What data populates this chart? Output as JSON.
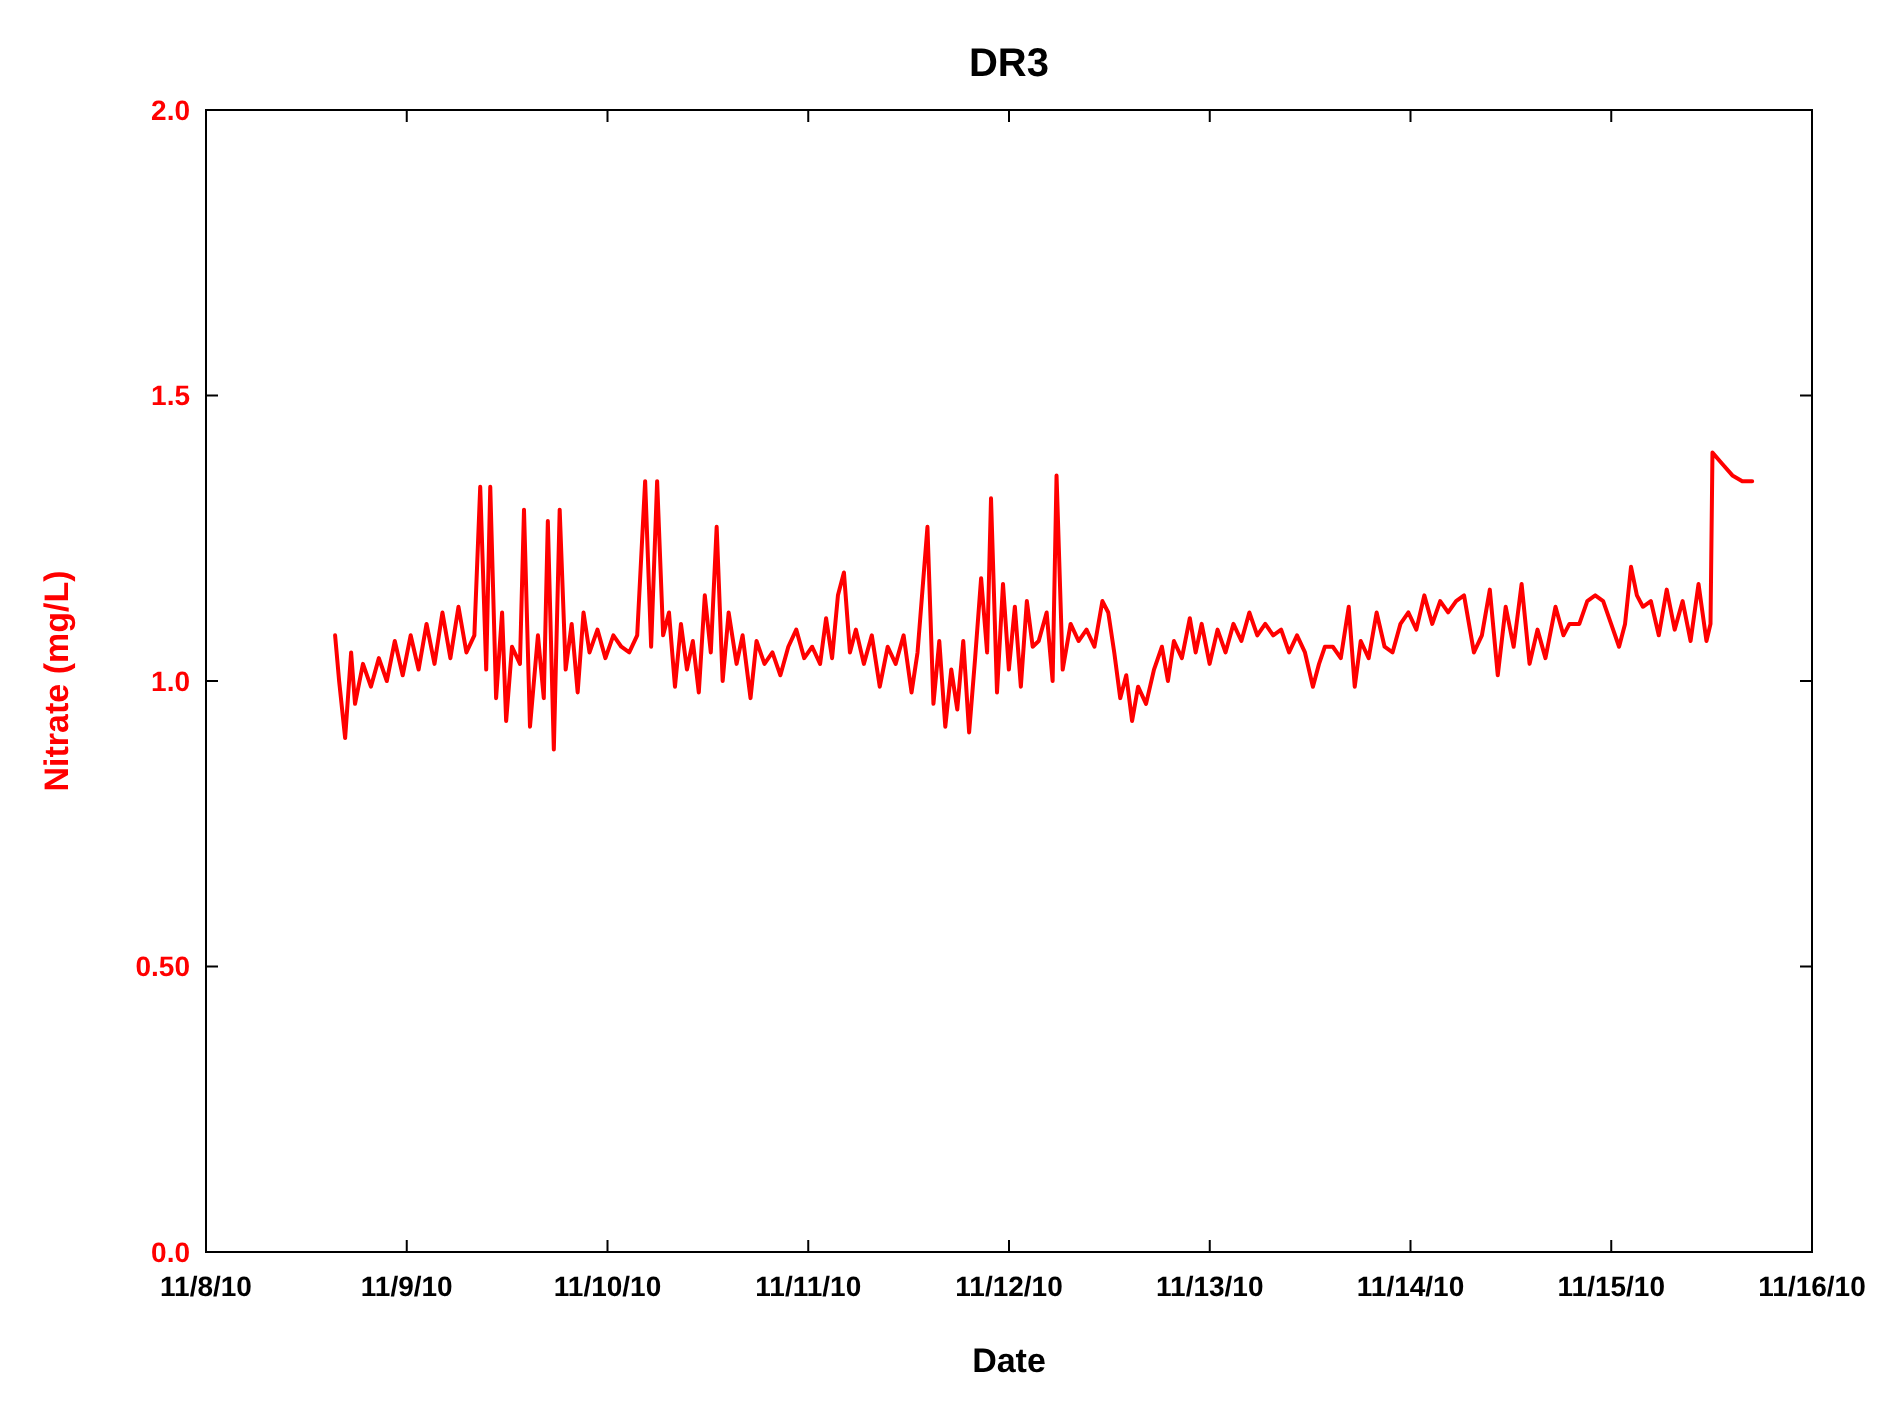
{
  "chart_data": {
    "type": "line",
    "title": "DR3",
    "xlabel": "Date",
    "ylabel": "Nitrate (mg/L)",
    "xlim": [
      "--11-08",
      "--11-16"
    ],
    "xticks": [
      {
        "value": "--11-08",
        "label": "11/8/10"
      },
      {
        "value": "--11-09",
        "label": "11/9/10"
      },
      {
        "value": "--11-10",
        "label": "11/10/10"
      },
      {
        "value": "--11-11",
        "label": "11/11/10"
      },
      {
        "value": "--11-12",
        "label": "11/12/10"
      },
      {
        "value": "--11-13",
        "label": "11/13/10"
      },
      {
        "value": "--11-14",
        "label": "11/14/10"
      },
      {
        "value": "--11-15",
        "label": "11/15/10"
      },
      {
        "value": "--11-16",
        "label": "11/16/10"
      }
    ],
    "ylim": [
      0,
      2
    ],
    "yticks": [
      {
        "value": 0,
        "label": "0.0"
      },
      {
        "value": 0.5,
        "label": "0.50"
      },
      {
        "value": 1,
        "label": "1.0"
      },
      {
        "value": 1.5,
        "label": "1.5"
      },
      {
        "value": 2,
        "label": "2.0"
      }
    ],
    "grid": false,
    "marker": "none",
    "line_style": "solid",
    "x": [
      "--11-08T15:26",
      "--11-08T15:55",
      "--11-08T16:38",
      "--11-08T17:21",
      "--11-08T17:49",
      "--11-08T18:46",
      "--11-08T19:43",
      "--11-08T20:40",
      "--11-08T21:37",
      "--11-08T22:34",
      "--11-08T23:31",
      "--11-09T00:28",
      "--11-09T01:25",
      "--11-09T02:22",
      "--11-09T03:19",
      "--11-09T04:16",
      "--11-09T05:13",
      "--11-09T06:11",
      "--11-09T07:08",
      "--11-09T08:05",
      "--11-09T08:47",
      "--11-09T09:30",
      "--11-09T09:59",
      "--11-09T10:41",
      "--11-09T11:24",
      "--11-09T11:53",
      "--11-09T12:35",
      "--11-09T13:32",
      "--11-09T14:01",
      "--11-09T14:44",
      "--11-09T15:41",
      "--11-09T16:23",
      "--11-09T16:52",
      "--11-09T17:35",
      "--11-09T18:17",
      "--11-09T19:00",
      "--11-09T19:43",
      "--11-09T20:26",
      "--11-09T21:08",
      "--11-09T21:51",
      "--11-09T22:48",
      "--11-09T23:45",
      "--11-10T00:42",
      "--11-10T01:39",
      "--11-10T02:36",
      "--11-10T03:33",
      "--11-10T04:30",
      "--11-10T05:13",
      "--11-10T05:56",
      "--11-10T06:39",
      "--11-10T07:21",
      "--11-10T08:04",
      "--11-10T08:47",
      "--11-10T09:30",
      "--11-10T10:12",
      "--11-10T10:55",
      "--11-10T11:38",
      "--11-10T12:21",
      "--11-10T13:03",
      "--11-10T13:46",
      "--11-10T14:29",
      "--11-10T15:26",
      "--11-10T16:09",
      "--11-10T17:06",
      "--11-10T17:49",
      "--11-10T18:46",
      "--11-10T19:43",
      "--11-10T20:40",
      "--11-10T21:37",
      "--11-10T22:34",
      "--11-10T23:31",
      "--11-11T00:28",
      "--11-11T01:25",
      "--11-11T02:08",
      "--11-11T02:51",
      "--11-11T03:33",
      "--11-11T04:16",
      "--11-11T04:59",
      "--11-11T05:42",
      "--11-11T06:39",
      "--11-11T07:36",
      "--11-11T08:33",
      "--11-11T09:30",
      "--11-11T10:27",
      "--11-11T11:24",
      "--11-11T12:21",
      "--11-11T13:04",
      "--11-11T14:15",
      "--11-11T14:58",
      "--11-11T15:40",
      "--11-11T16:23",
      "--11-11T17:06",
      "--11-11T17:49",
      "--11-11T18:32",
      "--11-11T19:14",
      "--11-11T19:57",
      "--11-11T20:40",
      "--11-11T21:23",
      "--11-11T21:51",
      "--11-11T22:34",
      "--11-11T23:17",
      "--11-11T23:59",
      "--11-12T00:42",
      "--11-12T01:25",
      "--11-12T02:08",
      "--11-12T02:50",
      "--11-12T03:33",
      "--11-12T04:30",
      "--11-12T05:13",
      "--11-12T05:41",
      "--11-12T06:25",
      "--11-12T07:22",
      "--11-12T08:19",
      "--11-12T09:16",
      "--11-12T10:13",
      "--11-12T11:10",
      "--11-12T11:52",
      "--11-12T12:35",
      "--11-12T13:18",
      "--11-12T14:01",
      "--11-12T14:43",
      "--11-12T15:26",
      "--11-12T16:23",
      "--11-12T17:20",
      "--11-12T18:17",
      "--11-12T19:00",
      "--11-12T19:43",
      "--11-12T20:40",
      "--11-12T21:37",
      "--11-12T22:19",
      "--11-12T23:02",
      "--11-12T23:59",
      "--11-13T00:56",
      "--11-13T01:53",
      "--11-13T02:50",
      "--11-13T03:47",
      "--11-13T04:44",
      "--11-13T05:41",
      "--11-13T06:38",
      "--11-13T07:35",
      "--11-13T08:32",
      "--11-13T09:29",
      "--11-13T10:26",
      "--11-13T11:23",
      "--11-13T12:20",
      "--11-13T13:04",
      "--11-13T13:46",
      "--11-13T14:43",
      "--11-13T15:40",
      "--11-13T16:37",
      "--11-13T17:20",
      "--11-13T18:03",
      "--11-13T19:00",
      "--11-13T19:57",
      "--11-13T20:54",
      "--11-13T21:51",
      "--11-13T22:48",
      "--11-13T23:45",
      "--11-14T00:42",
      "--11-14T01:39",
      "--11-14T02:36",
      "--11-14T03:33",
      "--11-14T04:30",
      "--11-14T05:27",
      "--11-14T06:24",
      "--11-14T07:35",
      "--11-14T08:32",
      "--11-14T09:29",
      "--11-14T10:26",
      "--11-14T11:23",
      "--11-14T12:20",
      "--11-14T13:17",
      "--11-14T14:14",
      "--11-14T15:11",
      "--11-14T16:08",
      "--11-14T17:20",
      "--11-14T18:17",
      "--11-14T19:00",
      "--11-14T20:11",
      "--11-14T21:08",
      "--11-14T22:05",
      "--11-14T23:02",
      "--11-14T23:59",
      "--11-15T00:56",
      "--11-15T01:39",
      "--11-15T02:22",
      "--11-15T03:04",
      "--11-15T03:47",
      "--11-15T04:44",
      "--11-15T05:41",
      "--11-15T06:38",
      "--11-15T07:35",
      "--11-15T08:32",
      "--11-15T09:29",
      "--11-15T10:26",
      "--11-15T11:23",
      "--11-15T11:52",
      "--11-15T12:06",
      "--11-15T13:17",
      "--11-15T14:29",
      "--11-15T15:40",
      "--11-15T16:51"
    ],
    "series": [
      {
        "color": "#ff0000",
        "values": [
          1.08,
          1.0,
          0.9,
          1.05,
          0.96,
          1.03,
          0.99,
          1.04,
          1.0,
          1.07,
          1.01,
          1.08,
          1.02,
          1.1,
          1.03,
          1.12,
          1.04,
          1.13,
          1.05,
          1.08,
          1.34,
          1.02,
          1.34,
          0.97,
          1.12,
          0.93,
          1.06,
          1.03,
          1.3,
          0.92,
          1.08,
          0.97,
          1.28,
          0.88,
          1.3,
          1.02,
          1.1,
          0.98,
          1.12,
          1.05,
          1.09,
          1.04,
          1.08,
          1.06,
          1.05,
          1.08,
          1.35,
          1.06,
          1.35,
          1.08,
          1.12,
          0.99,
          1.1,
          1.02,
          1.07,
          0.98,
          1.15,
          1.05,
          1.27,
          1.0,
          1.12,
          1.03,
          1.08,
          0.97,
          1.07,
          1.03,
          1.05,
          1.01,
          1.06,
          1.09,
          1.04,
          1.06,
          1.03,
          1.11,
          1.04,
          1.15,
          1.19,
          1.05,
          1.09,
          1.03,
          1.08,
          0.99,
          1.06,
          1.03,
          1.08,
          0.98,
          1.05,
          1.27,
          0.96,
          1.07,
          0.92,
          1.02,
          0.95,
          1.07,
          0.91,
          1.04,
          1.18,
          1.05,
          1.32,
          0.98,
          1.17,
          1.02,
          1.13,
          0.99,
          1.14,
          1.06,
          1.07,
          1.12,
          1.0,
          1.36,
          1.02,
          1.1,
          1.07,
          1.09,
          1.06,
          1.14,
          1.12,
          1.05,
          0.97,
          1.01,
          0.93,
          0.99,
          0.96,
          1.02,
          1.06,
          1.0,
          1.07,
          1.04,
          1.11,
          1.05,
          1.1,
          1.03,
          1.09,
          1.05,
          1.1,
          1.07,
          1.12,
          1.08,
          1.1,
          1.08,
          1.09,
          1.05,
          1.08,
          1.05,
          0.99,
          1.03,
          1.06,
          1.06,
          1.04,
          1.13,
          0.99,
          1.07,
          1.04,
          1.12,
          1.06,
          1.05,
          1.1,
          1.12,
          1.09,
          1.15,
          1.1,
          1.14,
          1.12,
          1.14,
          1.15,
          1.05,
          1.08,
          1.16,
          1.01,
          1.13,
          1.06,
          1.17,
          1.03,
          1.09,
          1.04,
          1.13,
          1.08,
          1.1,
          1.1,
          1.14,
          1.15,
          1.14,
          1.1,
          1.06,
          1.1,
          1.2,
          1.15,
          1.13,
          1.14,
          1.08,
          1.16,
          1.09,
          1.14,
          1.07,
          1.17,
          1.07,
          1.1,
          1.4,
          1.38,
          1.36,
          1.35,
          1.35
        ]
      }
    ]
  }
}
